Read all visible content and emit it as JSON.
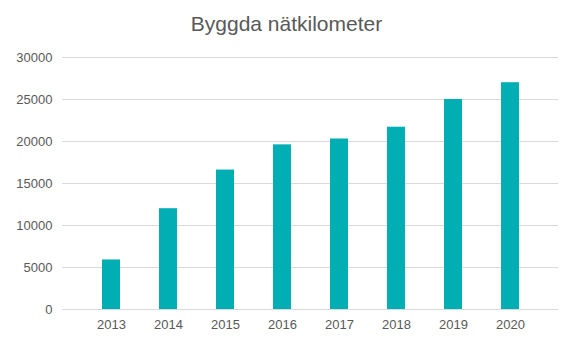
{
  "chart_data": {
    "type": "bar",
    "title": "Byggda nätkilometer",
    "categories": [
      "2013",
      "2014",
      "2015",
      "2016",
      "2017",
      "2018",
      "2019",
      "2020"
    ],
    "values": [
      5900,
      12000,
      16600,
      19600,
      20300,
      21700,
      25000,
      27000
    ],
    "color": "#00aeb3",
    "ylim": [
      0,
      30000
    ],
    "yticks": [
      0,
      5000,
      10000,
      15000,
      20000,
      25000,
      30000
    ],
    "grid": true
  }
}
